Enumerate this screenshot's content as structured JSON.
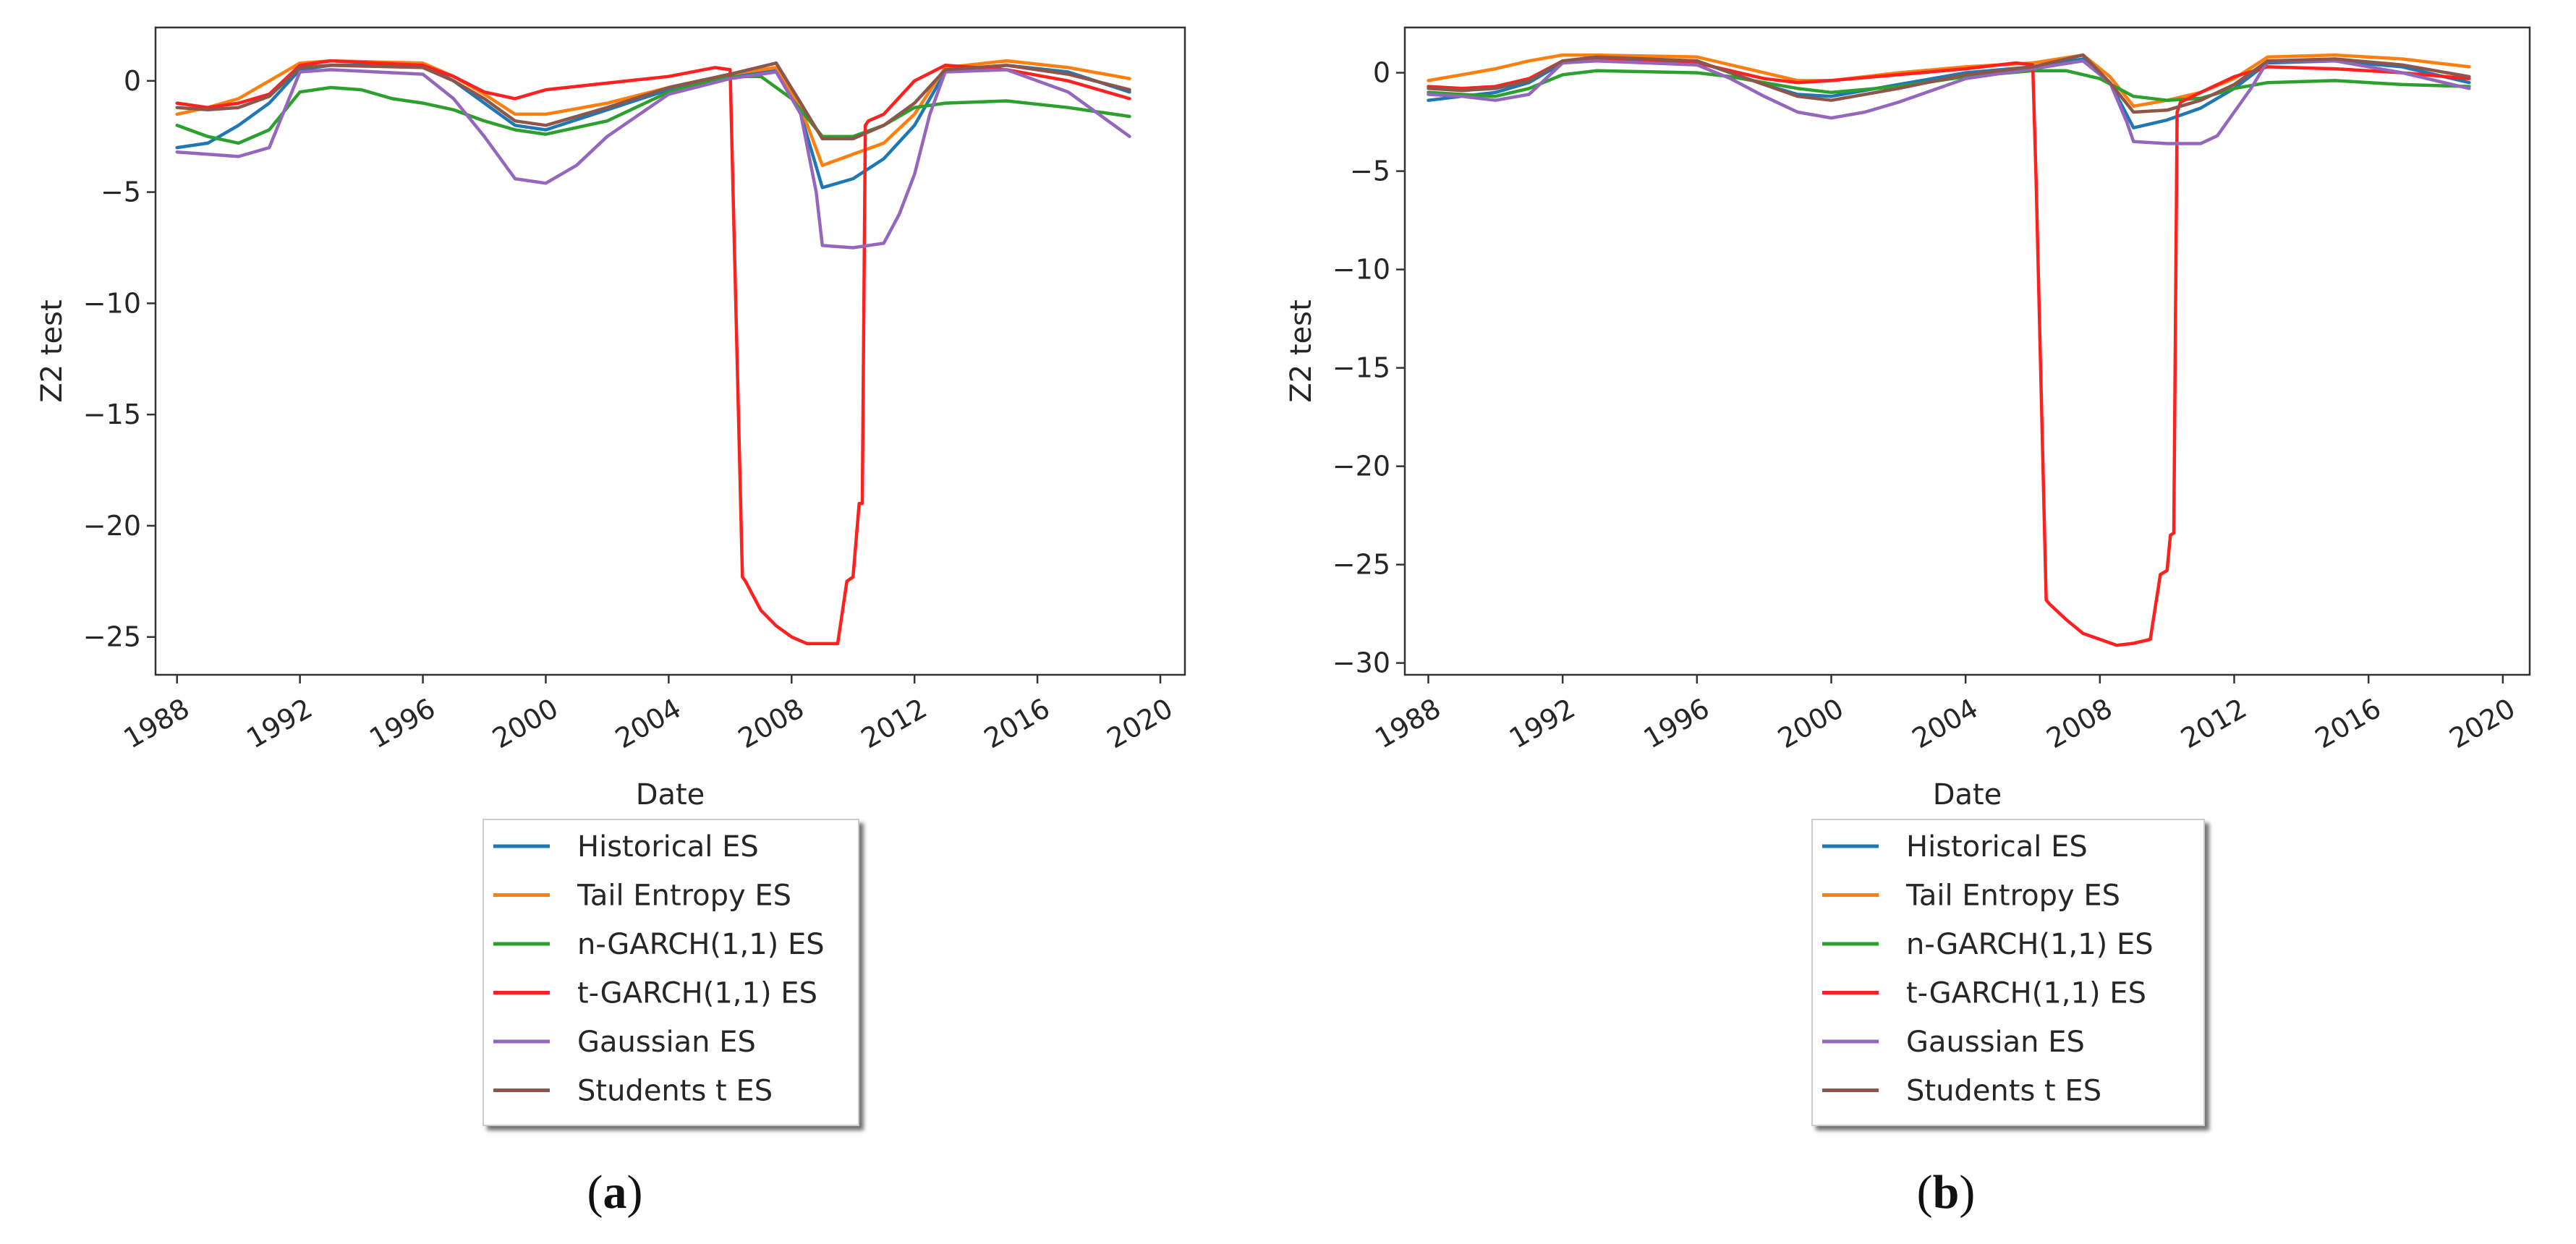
{
  "chart_data": [
    {
      "type": "line",
      "panel_label": "a",
      "xlabel": "Date",
      "ylabel": "Z2 test",
      "xlim": [
        1987.3,
        2020.8
      ],
      "ylim": [
        -26.7,
        2.4
      ],
      "x_ticks": [
        1988,
        1992,
        1996,
        2000,
        2004,
        2008,
        2012,
        2016,
        2020
      ],
      "x_tick_labels": [
        "1988",
        "1992",
        "1996",
        "2000",
        "2004",
        "2008",
        "2012",
        "2016",
        "2020"
      ],
      "y_ticks": [
        0,
        -5,
        -10,
        -15,
        -20,
        -25
      ],
      "y_tick_labels": [
        "0",
        "−5",
        "−10",
        "−15",
        "−20",
        "−25"
      ],
      "series": [
        {
          "name": "Historical ES",
          "color": "#1f77b4",
          "x": [
            1988,
            1989,
            1990,
            1991,
            1992,
            1993,
            1996,
            1997,
            1998,
            1999,
            2000,
            2002,
            2004,
            2006,
            2007.5,
            2008.3,
            2009,
            2010,
            2011,
            2012,
            2013,
            2015,
            2017,
            2019
          ],
          "values": [
            -3.0,
            -2.8,
            -2.0,
            -1.0,
            0.5,
            0.7,
            0.7,
            0.0,
            -1.0,
            -2.0,
            -2.2,
            -1.3,
            -0.4,
            0.2,
            0.5,
            -1.5,
            -4.8,
            -4.4,
            -3.5,
            -2.0,
            0.4,
            0.7,
            0.4,
            -0.5
          ]
        },
        {
          "name": "Tail Entropy ES",
          "color": "#ff7f0e",
          "x": [
            1988,
            1989,
            1990,
            1991,
            1992,
            1993,
            1996,
            1997,
            1998,
            1999,
            2000,
            2002,
            2004,
            2006,
            2007.5,
            2008.3,
            2009,
            2010,
            2011,
            2012,
            2013,
            2015,
            2017,
            2019
          ],
          "values": [
            -1.5,
            -1.2,
            -0.8,
            0.0,
            0.8,
            0.9,
            0.8,
            0.2,
            -0.6,
            -1.5,
            -1.5,
            -1.0,
            -0.3,
            0.3,
            0.6,
            -1.2,
            -3.8,
            -3.3,
            -2.8,
            -1.5,
            0.6,
            0.9,
            0.6,
            0.1
          ]
        },
        {
          "name": "n-GARCH(1,1) ES",
          "color": "#2ca02c",
          "x": [
            1988,
            1989,
            1990,
            1991,
            1992,
            1993,
            1994,
            1995,
            1996,
            1997,
            1998,
            1999,
            2000,
            2002,
            2004,
            2006,
            2007,
            2008,
            2009,
            2010,
            2011,
            2012,
            2013,
            2015,
            2017,
            2019
          ],
          "values": [
            -2.0,
            -2.5,
            -2.8,
            -2.2,
            -0.5,
            -0.3,
            -0.4,
            -0.8,
            -1.0,
            -1.3,
            -1.8,
            -2.2,
            -2.4,
            -1.8,
            -0.5,
            0.2,
            0.2,
            -0.8,
            -2.5,
            -2.5,
            -2.0,
            -1.2,
            -1.0,
            -0.9,
            -1.2,
            -1.6
          ]
        },
        {
          "name": "t-GARCH(1,1) ES",
          "color": "#ff2020",
          "x": [
            1988,
            1989,
            1990,
            1991,
            1992,
            1993,
            1996,
            1997,
            1998,
            1999,
            2000,
            2002,
            2004,
            2005.5,
            2006,
            2006.1,
            2006.4,
            2006.5,
            2007.0,
            2007.5,
            2008.0,
            2008.5,
            2009.0,
            2009.5,
            2009.8,
            2010.0,
            2010.2,
            2010.3,
            2010.4,
            2010.5,
            2011.0,
            2012.0,
            2013.0,
            2015.0,
            2017.0,
            2019.0
          ],
          "values": [
            -1.0,
            -1.2,
            -1.0,
            -0.6,
            0.7,
            0.9,
            0.7,
            0.2,
            -0.5,
            -0.8,
            -0.4,
            -0.1,
            0.2,
            0.6,
            0.5,
            -5.3,
            -22.3,
            -22.5,
            -23.8,
            -24.5,
            -25.0,
            -25.3,
            -25.3,
            -25.3,
            -22.5,
            -22.3,
            -19.0,
            -19.0,
            -2.0,
            -1.8,
            -1.5,
            0.0,
            0.7,
            0.5,
            0.0,
            -0.8
          ]
        },
        {
          "name": "Gaussian ES",
          "color": "#9467bd",
          "x": [
            1988,
            1989,
            1990,
            1991,
            1992,
            1993,
            1996,
            1997,
            1998,
            1999,
            2000,
            2001,
            2002,
            2004,
            2006,
            2007.5,
            2008.3,
            2008.8,
            2009,
            2010,
            2011,
            2011.5,
            2012,
            2012.5,
            2013,
            2015,
            2017,
            2019
          ],
          "values": [
            -3.2,
            -3.3,
            -3.4,
            -3.0,
            0.4,
            0.5,
            0.3,
            -0.8,
            -2.5,
            -4.4,
            -4.6,
            -3.8,
            -2.5,
            -0.6,
            0.1,
            0.4,
            -1.5,
            -5.0,
            -7.4,
            -7.5,
            -7.3,
            -6.0,
            -4.2,
            -1.5,
            0.4,
            0.5,
            -0.5,
            -2.5
          ]
        },
        {
          "name": "Students t ES",
          "color": "#8c564b",
          "x": [
            1988,
            1989,
            1990,
            1991,
            1992,
            1993,
            1996,
            1997,
            1998,
            1999,
            2000,
            2002,
            2004,
            2006,
            2007.5,
            2008.3,
            2009,
            2010,
            2011,
            2012,
            2013,
            2015,
            2017,
            2019
          ],
          "values": [
            -1.2,
            -1.3,
            -1.2,
            -0.7,
            0.6,
            0.7,
            0.6,
            0.0,
            -0.8,
            -1.8,
            -2.0,
            -1.2,
            -0.3,
            0.3,
            0.8,
            -1.0,
            -2.6,
            -2.6,
            -2.0,
            -1.0,
            0.5,
            0.7,
            0.3,
            -0.4
          ]
        }
      ],
      "legend_location": "below-center",
      "legend_labels": [
        "Historical ES",
        "Tail Entropy ES",
        "n-GARCH(1,1) ES",
        "t-GARCH(1,1) ES",
        "Gaussian ES",
        "Students t ES"
      ]
    },
    {
      "type": "line",
      "panel_label": "b",
      "xlabel": "Date",
      "ylabel": "Z2 test",
      "xlim": [
        1987.3,
        2020.8
      ],
      "ylim": [
        -30.6,
        2.3
      ],
      "x_ticks": [
        1988,
        1992,
        1996,
        2000,
        2004,
        2008,
        2012,
        2016,
        2020
      ],
      "x_tick_labels": [
        "1988",
        "1992",
        "1996",
        "2000",
        "2004",
        "2008",
        "2012",
        "2016",
        "2020"
      ],
      "y_ticks": [
        0,
        -5,
        -10,
        -15,
        -20,
        -25,
        -30
      ],
      "y_tick_labels": [
        "0",
        "−5",
        "−10",
        "−15",
        "−20",
        "−25",
        "−30"
      ],
      "series": [
        {
          "name": "Historical ES",
          "color": "#1f77b4",
          "x": [
            1988,
            1989,
            1990,
            1991,
            1992,
            1993,
            1996,
            1997,
            1998,
            1999,
            2000,
            2002,
            2004,
            2006,
            2007.5,
            2008.3,
            2009,
            2010,
            2011,
            2012,
            2013,
            2015,
            2017,
            2019
          ],
          "values": [
            -1.4,
            -1.2,
            -1.0,
            -0.5,
            0.5,
            0.7,
            0.6,
            0.0,
            -0.6,
            -1.1,
            -1.2,
            -0.6,
            0.0,
            0.3,
            0.7,
            -0.5,
            -2.8,
            -2.4,
            -1.8,
            -0.8,
            0.5,
            0.6,
            0.3,
            -0.5
          ]
        },
        {
          "name": "Tail Entropy ES",
          "color": "#ff7f0e",
          "x": [
            1988,
            1989,
            1990,
            1991,
            1992,
            1993,
            1996,
            1997,
            1998,
            1999,
            2000,
            2002,
            2004,
            2006,
            2007.5,
            2008.3,
            2009,
            2010,
            2011,
            2012,
            2013,
            2015,
            2017,
            2019
          ],
          "values": [
            -0.4,
            -0.1,
            0.2,
            0.6,
            0.9,
            0.9,
            0.8,
            0.4,
            0.0,
            -0.4,
            -0.4,
            0.0,
            0.3,
            0.5,
            0.9,
            -0.2,
            -1.7,
            -1.4,
            -1.0,
            -0.3,
            0.8,
            0.9,
            0.7,
            0.3
          ]
        },
        {
          "name": "n-GARCH(1,1) ES",
          "color": "#2ca02c",
          "x": [
            1988,
            1989,
            1990,
            1991,
            1992,
            1993,
            1996,
            1997,
            1998,
            1999,
            2000,
            2002,
            2004,
            2006,
            2007,
            2008,
            2009,
            2010,
            2011,
            2012,
            2013,
            2015,
            2017,
            2019
          ],
          "values": [
            -1.0,
            -1.1,
            -1.2,
            -0.8,
            -0.1,
            0.1,
            0.0,
            -0.2,
            -0.5,
            -0.8,
            -1.0,
            -0.7,
            -0.2,
            0.1,
            0.1,
            -0.3,
            -1.2,
            -1.4,
            -1.3,
            -0.8,
            -0.5,
            -0.4,
            -0.6,
            -0.7
          ]
        },
        {
          "name": "t-GARCH(1,1) ES",
          "color": "#ff2020",
          "x": [
            1988,
            1989,
            1990,
            1991,
            1992,
            1993,
            1996,
            1997,
            1998,
            1999,
            2000,
            2002,
            2004,
            2005.5,
            2006,
            2006.1,
            2006.4,
            2006.5,
            2007.0,
            2007.5,
            2008.0,
            2008.5,
            2009.0,
            2009.5,
            2009.8,
            2010.0,
            2010.1,
            2010.2,
            2010.3,
            2010.4,
            2011.0,
            2012.0,
            2013.0,
            2015.0,
            2017.0,
            2019.0
          ],
          "values": [
            -0.7,
            -0.8,
            -0.7,
            -0.3,
            0.6,
            0.7,
            0.5,
            0.1,
            -0.3,
            -0.5,
            -0.4,
            -0.1,
            0.2,
            0.5,
            0.4,
            -5.5,
            -26.8,
            -27.0,
            -27.8,
            -28.5,
            -28.8,
            -29.1,
            -29.0,
            -28.8,
            -25.5,
            -25.3,
            -23.5,
            -23.4,
            -2.0,
            -1.5,
            -1.0,
            -0.2,
            0.3,
            0.2,
            0.0,
            -0.3
          ]
        },
        {
          "name": "Gaussian ES",
          "color": "#9467bd",
          "x": [
            1988,
            1989,
            1990,
            1991,
            1992,
            1993,
            1996,
            1997,
            1998,
            1999,
            2000,
            2001,
            2002,
            2004,
            2006,
            2007.5,
            2008.3,
            2008.8,
            2009,
            2010,
            2011,
            2011.5,
            2012,
            2012.5,
            2013,
            2015,
            2017,
            2019
          ],
          "values": [
            -1.1,
            -1.2,
            -1.4,
            -1.1,
            0.5,
            0.6,
            0.4,
            -0.3,
            -1.2,
            -2.0,
            -2.3,
            -2.0,
            -1.5,
            -0.3,
            0.2,
            0.6,
            -0.5,
            -2.5,
            -3.5,
            -3.6,
            -3.6,
            -3.2,
            -2.0,
            -0.8,
            0.6,
            0.6,
            0.0,
            -0.8
          ]
        },
        {
          "name": "Students t ES",
          "color": "#8c564b",
          "x": [
            1988,
            1989,
            1990,
            1991,
            1992,
            1993,
            1996,
            1997,
            1998,
            1999,
            2000,
            2002,
            2004,
            2006,
            2007.5,
            2008.3,
            2009,
            2010,
            2011,
            2012,
            2013,
            2015,
            2017,
            2019
          ],
          "values": [
            -0.8,
            -0.9,
            -0.8,
            -0.4,
            0.6,
            0.8,
            0.6,
            0.0,
            -0.6,
            -1.2,
            -1.4,
            -0.8,
            -0.1,
            0.3,
            0.9,
            -0.5,
            -2.0,
            -1.9,
            -1.4,
            -0.6,
            0.6,
            0.7,
            0.4,
            -0.2
          ]
        }
      ],
      "legend_location": "below-center",
      "legend_labels": [
        "Historical ES",
        "Tail Entropy ES",
        "n-GARCH(1,1) ES",
        "t-GARCH(1,1) ES",
        "Gaussian ES",
        "Students t ES"
      ]
    }
  ],
  "captions": {
    "a": "a",
    "b": "b",
    "open_paren": "(",
    "close_paren": ")"
  }
}
